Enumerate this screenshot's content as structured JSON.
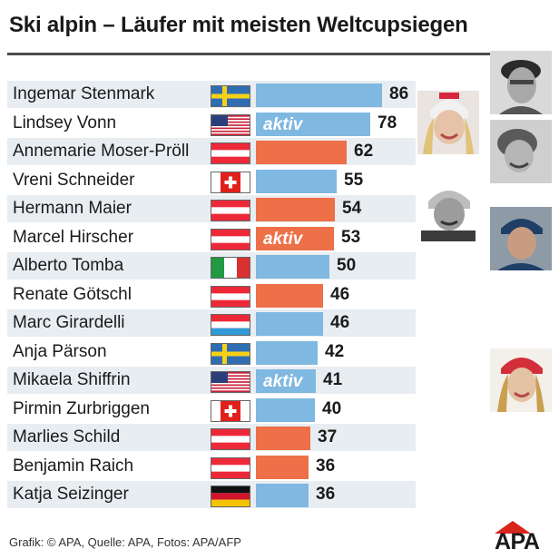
{
  "chart_data": {
    "type": "bar",
    "orientation": "horizontal",
    "title": "Ski alpin – Läufer mit meisten Weltcupsiegen",
    "categories": [
      "Ingemar Stenmark",
      "Lindsey Vonn",
      "Annemarie Moser-Pröll",
      "Vreni Schneider",
      "Hermann Maier",
      "Marcel Hirscher",
      "Alberto Tomba",
      "Renate Götschl",
      "Marc Girardelli",
      "Anja Pärson",
      "Mikaela Shiffrin",
      "Pirmin Zurbriggen",
      "Marlies Schild",
      "Benjamin Raich",
      "Katja Seizinger"
    ],
    "values": [
      86,
      78,
      62,
      55,
      54,
      53,
      50,
      46,
      46,
      42,
      41,
      40,
      37,
      36,
      36
    ],
    "value_labels": [
      "86",
      "78",
      "62",
      "55",
      "54",
      "53",
      "50",
      "46",
      "46",
      "42",
      "41",
      "40",
      "37",
      "36",
      "36"
    ],
    "countries": [
      "sweden",
      "usa",
      "austria",
      "switzerland",
      "austria",
      "austria",
      "italy",
      "austria",
      "luxembourg",
      "sweden",
      "usa",
      "switzerland",
      "austria",
      "austria",
      "germany"
    ],
    "active_label": "aktiv",
    "active": [
      false,
      true,
      false,
      false,
      false,
      true,
      false,
      false,
      false,
      false,
      true,
      false,
      false,
      false,
      false
    ],
    "bar_colors": {
      "default": "#7fb8e0",
      "austria": "#ee7048"
    },
    "xlim": [
      0,
      86
    ],
    "grid": false,
    "legend": "none"
  },
  "photos": [
    "portrait-photo-stenmark",
    "portrait-photo-vonn",
    "portrait-photo-moser-proell",
    "portrait-photo-maier",
    "portrait-photo-hirscher",
    "portrait-photo-shiffrin"
  ],
  "footer": "Grafik: © APA, Quelle: APA, Fotos: APA/AFP",
  "logo": "APA"
}
